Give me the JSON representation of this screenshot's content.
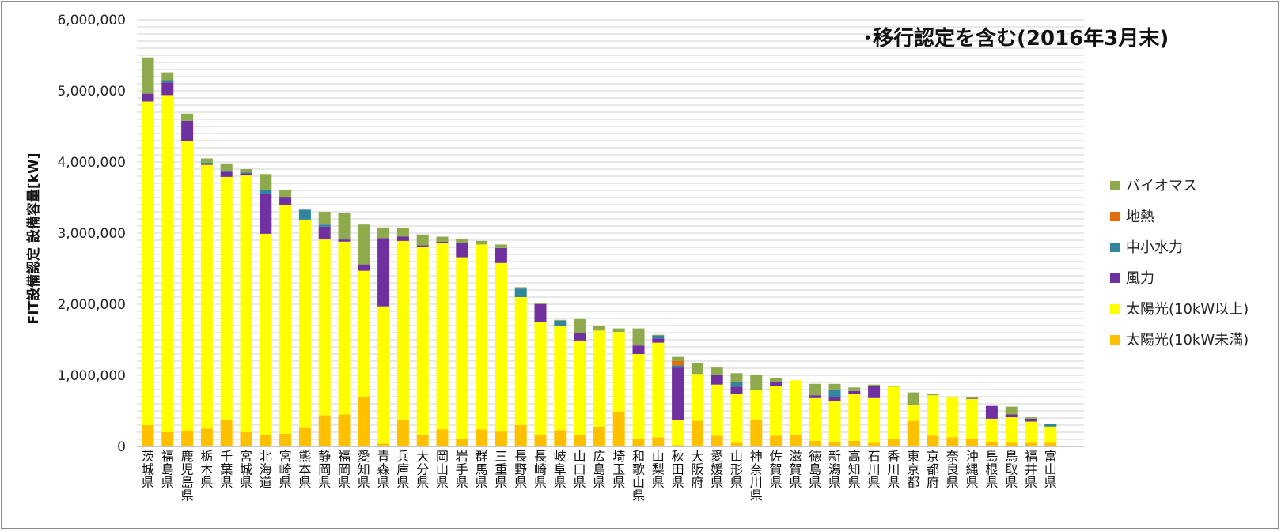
{
  "chart_data": {
    "type": "bar",
    "stacked": true,
    "title": "･移行認定を含む(2016年3月末)",
    "ylabel": "FIT設備認定 設備容量[kW]",
    "xlabel": "",
    "ylim": [
      0,
      6000000
    ],
    "yticks": [
      "0",
      "1,000,000",
      "2,000,000",
      "3,000,000",
      "4,000,000",
      "5,000,000",
      "6,000,000"
    ],
    "grid": true,
    "legend_position": "right",
    "categories": [
      "茨城県",
      "福島県",
      "鹿児島県",
      "栃木県",
      "千葉県",
      "宮城県",
      "北海道",
      "宮崎県",
      "熊本県",
      "静岡県",
      "福岡県",
      "愛知県",
      "青森県",
      "兵庫県",
      "大分県",
      "岡山県",
      "岩手県",
      "群馬県",
      "三重県",
      "長野県",
      "長崎県",
      "岐阜県",
      "山口県",
      "広島県",
      "埼玉県",
      "和歌山県",
      "山梨県",
      "秋田県",
      "大阪府",
      "愛媛県",
      "山形県",
      "神奈川県",
      "佐賀県",
      "滋賀県",
      "徳島県",
      "新潟県",
      "高知県",
      "石川県",
      "香川県",
      "東京都",
      "京都府",
      "奈良県",
      "沖縄県",
      "島根県",
      "鳥取県",
      "福井県",
      "富山県"
    ],
    "series": [
      {
        "name": "太陽光(10kW未満)",
        "color": "#FFC000",
        "values": [
          300000,
          200000,
          220000,
          250000,
          380000,
          200000,
          160000,
          180000,
          260000,
          440000,
          450000,
          690000,
          40000,
          380000,
          160000,
          240000,
          100000,
          240000,
          210000,
          300000,
          160000,
          230000,
          160000,
          280000,
          490000,
          100000,
          130000,
          20000,
          360000,
          150000,
          50000,
          380000,
          150000,
          170000,
          80000,
          70000,
          80000,
          50000,
          110000,
          360000,
          150000,
          130000,
          100000,
          60000,
          50000,
          50000,
          50000
        ]
      },
      {
        "name": "太陽光(10kW以上)",
        "color": "#FFFF00",
        "values": [
          4550000,
          4740000,
          4080000,
          3710000,
          3410000,
          3610000,
          2830000,
          3220000,
          2930000,
          2470000,
          2430000,
          1780000,
          1930000,
          2510000,
          2640000,
          2620000,
          2560000,
          2600000,
          2370000,
          1800000,
          1590000,
          1460000,
          1330000,
          1350000,
          1120000,
          1200000,
          1330000,
          350000,
          660000,
          720000,
          690000,
          420000,
          700000,
          760000,
          600000,
          570000,
          660000,
          630000,
          730000,
          220000,
          570000,
          560000,
          570000,
          330000,
          360000,
          300000,
          230000
        ]
      },
      {
        "name": "風力",
        "color": "#7030A0",
        "values": [
          110000,
          180000,
          280000,
          10000,
          70000,
          30000,
          560000,
          110000,
          0,
          180000,
          30000,
          90000,
          960000,
          60000,
          30000,
          20000,
          200000,
          0,
          210000,
          0,
          250000,
          0,
          110000,
          0,
          0,
          120000,
          60000,
          740000,
          0,
          140000,
          100000,
          0,
          60000,
          0,
          40000,
          60000,
          40000,
          170000,
          0,
          0,
          0,
          0,
          10000,
          180000,
          40000,
          40000,
          0
        ]
      },
      {
        "name": "中小水力",
        "color": "#31859C",
        "values": [
          0,
          30000,
          0,
          20000,
          10000,
          10000,
          60000,
          0,
          140000,
          30000,
          0,
          0,
          0,
          0,
          0,
          0,
          0,
          0,
          0,
          120000,
          0,
          80000,
          0,
          0,
          0,
          0,
          40000,
          30000,
          0,
          0,
          70000,
          0,
          0,
          0,
          0,
          100000,
          0,
          0,
          0,
          0,
          0,
          0,
          0,
          0,
          0,
          0,
          40000
        ]
      },
      {
        "name": "地熱",
        "color": "#E46C0A",
        "values": [
          0,
          0,
          0,
          0,
          0,
          0,
          0,
          0,
          0,
          0,
          0,
          0,
          0,
          0,
          0,
          0,
          0,
          0,
          0,
          0,
          0,
          0,
          0,
          0,
          0,
          0,
          0,
          60000,
          0,
          0,
          0,
          0,
          0,
          0,
          0,
          0,
          0,
          0,
          0,
          0,
          0,
          0,
          0,
          0,
          0,
          0,
          0
        ]
      },
      {
        "name": "バイオマス",
        "color": "#8EAA4C",
        "values": [
          510000,
          110000,
          100000,
          60000,
          110000,
          50000,
          220000,
          90000,
          0,
          180000,
          370000,
          560000,
          150000,
          120000,
          150000,
          70000,
          60000,
          50000,
          50000,
          20000,
          10000,
          10000,
          190000,
          70000,
          50000,
          240000,
          10000,
          60000,
          150000,
          100000,
          120000,
          210000,
          50000,
          0,
          160000,
          80000,
          50000,
          20000,
          10000,
          180000,
          20000,
          10000,
          10000,
          0,
          110000,
          20000,
          0
        ]
      }
    ]
  }
}
